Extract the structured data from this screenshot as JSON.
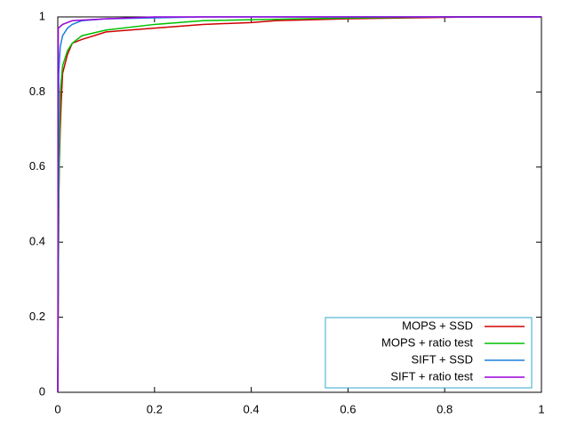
{
  "chart_data": {
    "type": "line",
    "xlim": [
      0,
      1
    ],
    "ylim": [
      0,
      1
    ],
    "xticks": [
      0,
      0.2,
      0.4,
      0.6,
      0.8,
      1
    ],
    "yticks": [
      0,
      0.2,
      0.4,
      0.6,
      0.8,
      1
    ],
    "grid": false,
    "legend": "lower right",
    "legend_border_color": "#33aacc",
    "series": [
      {
        "name": "MOPS + SSD",
        "color": "#d00000",
        "x": [
          0,
          0.002,
          0.003,
          0.005,
          0.007,
          0.01,
          0.02,
          0.03,
          0.05,
          0.1,
          0.2,
          0.3,
          0.4,
          0.45,
          0.6,
          0.87,
          1
        ],
        "values": [
          0,
          0.5,
          0.6,
          0.7,
          0.77,
          0.85,
          0.9,
          0.93,
          0.94,
          0.96,
          0.97,
          0.98,
          0.985,
          0.99,
          0.995,
          1,
          1
        ]
      },
      {
        "name": "MOPS + ratio test",
        "color": "#00c000",
        "x": [
          0,
          0.002,
          0.005,
          0.01,
          0.02,
          0.03,
          0.05,
          0.1,
          0.2,
          0.3,
          0.5,
          0.8,
          1
        ],
        "values": [
          0,
          0.5,
          0.8,
          0.87,
          0.91,
          0.93,
          0.95,
          0.965,
          0.98,
          0.99,
          0.995,
          1,
          1
        ]
      },
      {
        "name": "SIFT + SSD",
        "color": "#1a7fe0",
        "x": [
          0,
          0.002,
          0.005,
          0.01,
          0.02,
          0.03,
          0.05,
          0.1,
          0.3,
          1
        ],
        "values": [
          0,
          0.85,
          0.92,
          0.95,
          0.97,
          0.98,
          0.99,
          0.995,
          1,
          1
        ]
      },
      {
        "name": "SIFT + ratio test",
        "color": "#9a00d8",
        "x": [
          0,
          0.001,
          0.01,
          0.02,
          0.03,
          0.1,
          0.2,
          1
        ],
        "values": [
          0,
          0.97,
          0.98,
          0.985,
          0.99,
          0.995,
          1,
          1
        ]
      }
    ]
  }
}
